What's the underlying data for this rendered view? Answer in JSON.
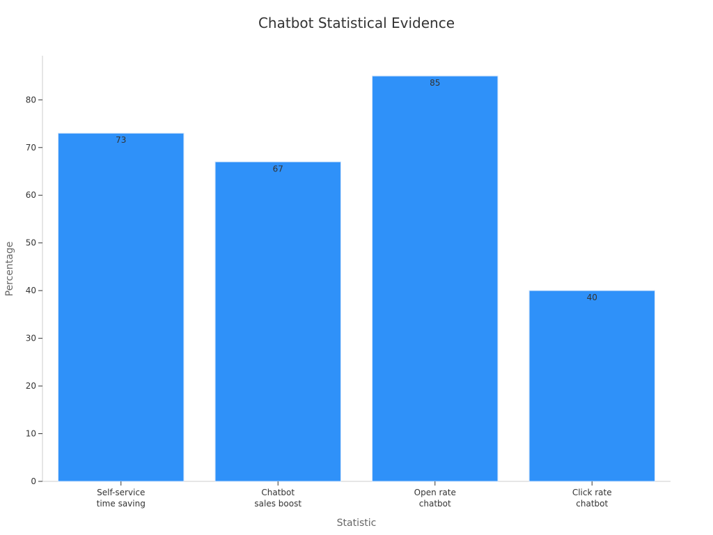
{
  "chart_data": {
    "type": "bar",
    "title": "Chatbot Statistical Evidence",
    "x_label": "Statistic",
    "y_label": "Percentage",
    "categories": [
      "Self-service\ntime saving",
      "Chatbot\nsales boost",
      "Open rate\nchatbot",
      "Click rate\nchatbot"
    ],
    "values": [
      73,
      67,
      85,
      40
    ],
    "color": "#2f91f9",
    "ylim": [
      0,
      89.25
    ],
    "yticks": [
      0,
      10,
      20,
      30,
      40,
      50,
      60,
      70,
      80
    ],
    "grid": false
  }
}
